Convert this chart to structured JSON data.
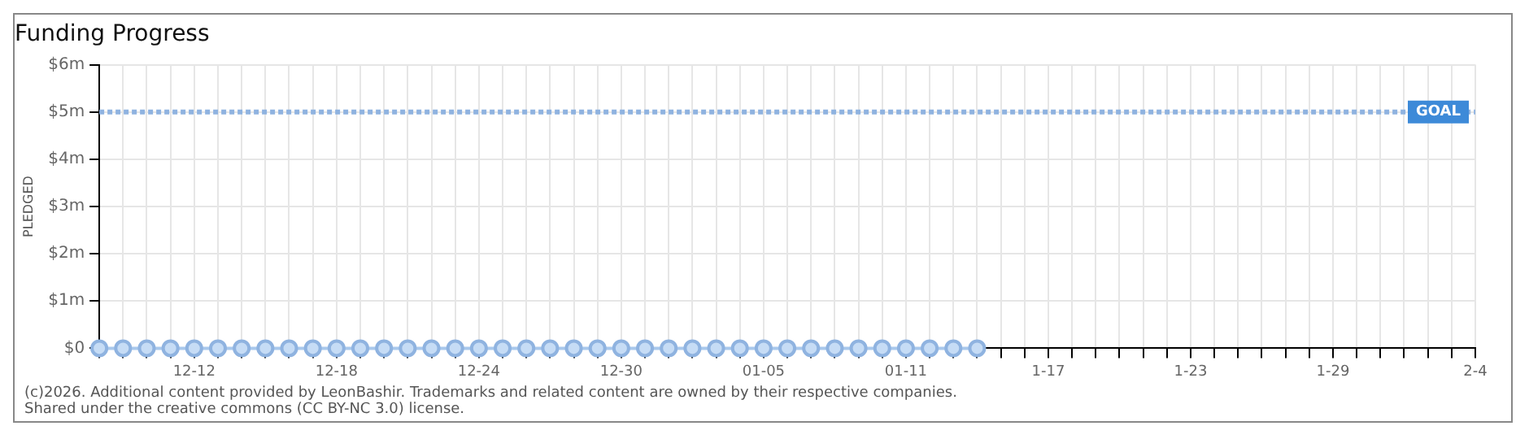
{
  "chart_data": {
    "type": "line",
    "title": "Funding Progress",
    "ylabel": "PLEDGED",
    "x": [
      "2025-12-08",
      "2025-12-09",
      "2025-12-10",
      "2025-12-11",
      "2025-12-12",
      "2025-12-13",
      "2025-12-14",
      "2025-12-15",
      "2025-12-16",
      "2025-12-17",
      "2025-12-18",
      "2025-12-19",
      "2025-12-20",
      "2025-12-21",
      "2025-12-22",
      "2025-12-23",
      "2025-12-24",
      "2025-12-25",
      "2025-12-26",
      "2025-12-27",
      "2025-12-28",
      "2025-12-29",
      "2025-12-30",
      "2025-12-31",
      "2026-01-01",
      "2026-01-02",
      "2026-01-03",
      "2026-01-04",
      "2026-01-05",
      "2026-01-06",
      "2026-01-07",
      "2026-01-08",
      "2026-01-09",
      "2026-01-10",
      "2026-01-11",
      "2026-01-12",
      "2026-01-13",
      "2026-01-14"
    ],
    "series": [
      {
        "color": "#a9c8ec",
        "values": [
          0,
          0,
          0,
          0,
          0,
          0,
          0,
          0,
          0,
          0,
          0,
          0,
          0,
          0,
          0,
          0,
          0,
          0,
          0,
          0,
          0,
          0,
          0,
          0,
          0,
          0,
          0,
          0,
          0,
          0,
          0,
          0,
          0,
          0,
          0,
          0,
          0,
          0
        ]
      }
    ],
    "xlim": [
      "2025-12-08",
      "2026-02-04"
    ],
    "xticks": [
      {
        "value": "2025-12-08",
        "label": null
      },
      {
        "value": "2025-12-09",
        "label": null
      },
      {
        "value": "2025-12-10",
        "label": null
      },
      {
        "value": "2025-12-11",
        "label": null
      },
      {
        "value": "2025-12-12",
        "label": "12-12"
      },
      {
        "value": "2025-12-13",
        "label": null
      },
      {
        "value": "2025-12-14",
        "label": null
      },
      {
        "value": "2025-12-15",
        "label": null
      },
      {
        "value": "2025-12-16",
        "label": null
      },
      {
        "value": "2025-12-17",
        "label": null
      },
      {
        "value": "2025-12-18",
        "label": "12-18"
      },
      {
        "value": "2025-12-19",
        "label": null
      },
      {
        "value": "2025-12-20",
        "label": null
      },
      {
        "value": "2025-12-21",
        "label": null
      },
      {
        "value": "2025-12-22",
        "label": null
      },
      {
        "value": "2025-12-23",
        "label": null
      },
      {
        "value": "2025-12-24",
        "label": "12-24"
      },
      {
        "value": "2025-12-25",
        "label": null
      },
      {
        "value": "2025-12-26",
        "label": null
      },
      {
        "value": "2025-12-27",
        "label": null
      },
      {
        "value": "2025-12-28",
        "label": null
      },
      {
        "value": "2025-12-29",
        "label": null
      },
      {
        "value": "2025-12-30",
        "label": "12-30"
      },
      {
        "value": "2025-12-31",
        "label": null
      },
      {
        "value": "2026-01-01",
        "label": null
      },
      {
        "value": "2026-01-02",
        "label": null
      },
      {
        "value": "2026-01-03",
        "label": null
      },
      {
        "value": "2026-01-04",
        "label": null
      },
      {
        "value": "2026-01-05",
        "label": "01-05"
      },
      {
        "value": "2026-01-06",
        "label": null
      },
      {
        "value": "2026-01-07",
        "label": null
      },
      {
        "value": "2026-01-08",
        "label": null
      },
      {
        "value": "2026-01-09",
        "label": null
      },
      {
        "value": "2026-01-10",
        "label": null
      },
      {
        "value": "2026-01-11",
        "label": "01-11"
      },
      {
        "value": "2026-01-12",
        "label": null
      },
      {
        "value": "2026-01-13",
        "label": null
      },
      {
        "value": "2026-01-14",
        "label": null
      },
      {
        "value": "2026-01-15",
        "label": null
      },
      {
        "value": "2026-01-16",
        "label": null
      },
      {
        "value": "2026-01-17",
        "label": "1-17"
      },
      {
        "value": "2026-01-18",
        "label": null
      },
      {
        "value": "2026-01-19",
        "label": null
      },
      {
        "value": "2026-01-20",
        "label": null
      },
      {
        "value": "2026-01-21",
        "label": null
      },
      {
        "value": "2026-01-22",
        "label": null
      },
      {
        "value": "2026-01-23",
        "label": "1-23"
      },
      {
        "value": "2026-01-24",
        "label": null
      },
      {
        "value": "2026-01-25",
        "label": null
      },
      {
        "value": "2026-01-26",
        "label": null
      },
      {
        "value": "2026-01-27",
        "label": null
      },
      {
        "value": "2026-01-28",
        "label": null
      },
      {
        "value": "2026-01-29",
        "label": "1-29"
      },
      {
        "value": "2026-01-30",
        "label": null
      },
      {
        "value": "2026-01-31",
        "label": null
      },
      {
        "value": "2026-02-01",
        "label": null
      },
      {
        "value": "2026-02-02",
        "label": null
      },
      {
        "value": "2026-02-03",
        "label": null
      },
      {
        "value": "2026-02-04",
        "label": "2-4"
      }
    ],
    "ylim": [
      0,
      6000000
    ],
    "yticks": [
      {
        "value": 0,
        "label": "$0"
      },
      {
        "value": 1000000,
        "label": "$1m"
      },
      {
        "value": 2000000,
        "label": "$2m"
      },
      {
        "value": 3000000,
        "label": "$3m"
      },
      {
        "value": 4000000,
        "label": "$4m"
      },
      {
        "value": 5000000,
        "label": "$5m"
      },
      {
        "value": 6000000,
        "label": "$6m"
      }
    ],
    "ref_lines": [
      {
        "axis": "y",
        "value": 5000000,
        "label": "GOAL",
        "color": "#8fb3e0",
        "line_style": "dotted"
      }
    ],
    "grid": true,
    "legend": false,
    "marker": "circle",
    "annotations": [
      "(c)2026. Additional content provided by LeonBashir. Trademarks and related content are owned by their respective companies.",
      "Shared under the creative commons (CC BY-NC 3.0) license."
    ]
  }
}
